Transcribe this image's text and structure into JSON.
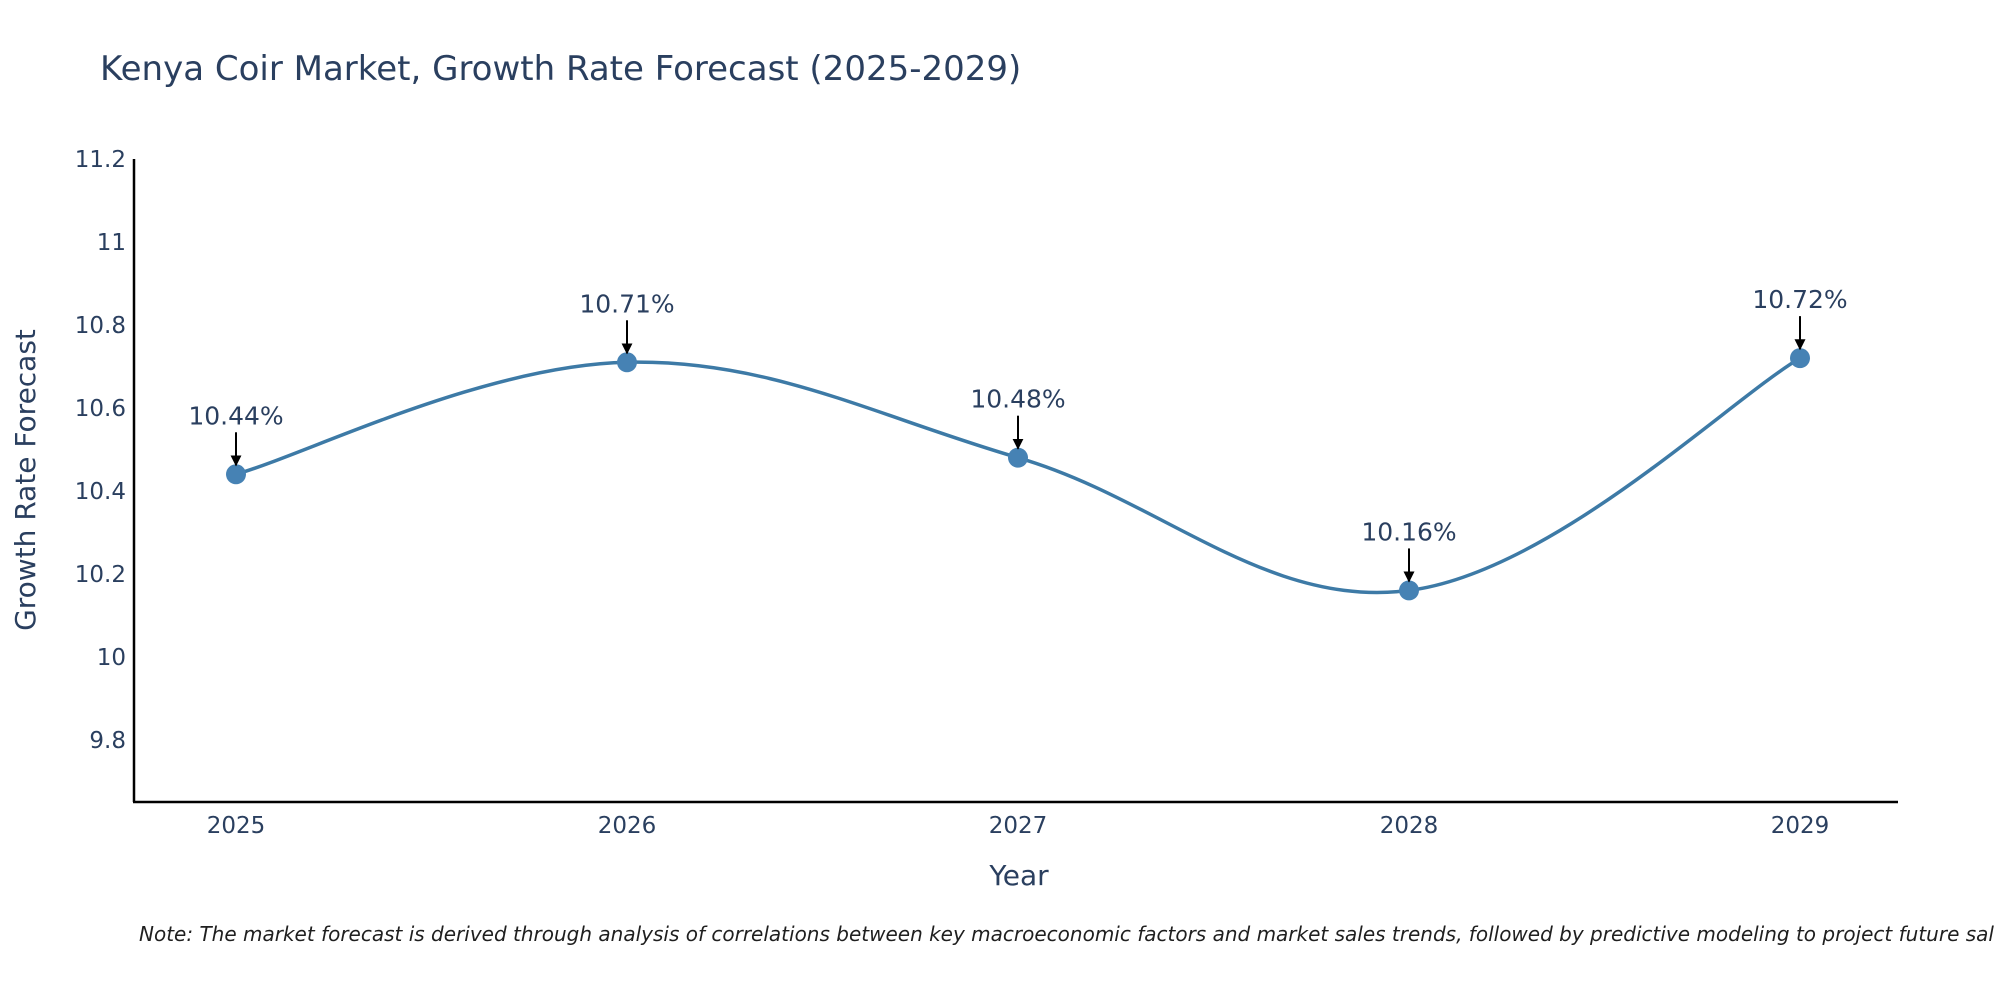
{
  "chart_data": {
    "type": "line",
    "title": "Kenya Coir Market, Growth Rate Forecast (2025-2029)",
    "xlabel": "Year",
    "ylabel": "Growth Rate Forecast",
    "categories": [
      "2025",
      "2026",
      "2027",
      "2028",
      "2029"
    ],
    "series": [
      {
        "name": "Growth Rate Forecast",
        "values": [
          10.44,
          10.71,
          10.48,
          10.16,
          10.72
        ],
        "labels": [
          "10.44%",
          "10.71%",
          "10.48%",
          "10.16%",
          "10.72%"
        ]
      }
    ],
    "ylim": [
      9.65,
      11.2
    ],
    "yticks": [
      9.8,
      10,
      10.2,
      10.4,
      10.6,
      10.8,
      11,
      11.2
    ],
    "ytick_labels": [
      "9.8",
      "10",
      "10.2",
      "10.4",
      "10.6",
      "10.8",
      "11",
      "11.2"
    ],
    "grid": false,
    "legend": "none",
    "line_color": "#3d7aa6",
    "marker_color": "#4682b4",
    "arrow_color": "#000000",
    "note": "Note: The market forecast is derived through analysis of correlations between key macroeconomic factors and market sales trends, followed by predictive modeling to project future sal"
  }
}
